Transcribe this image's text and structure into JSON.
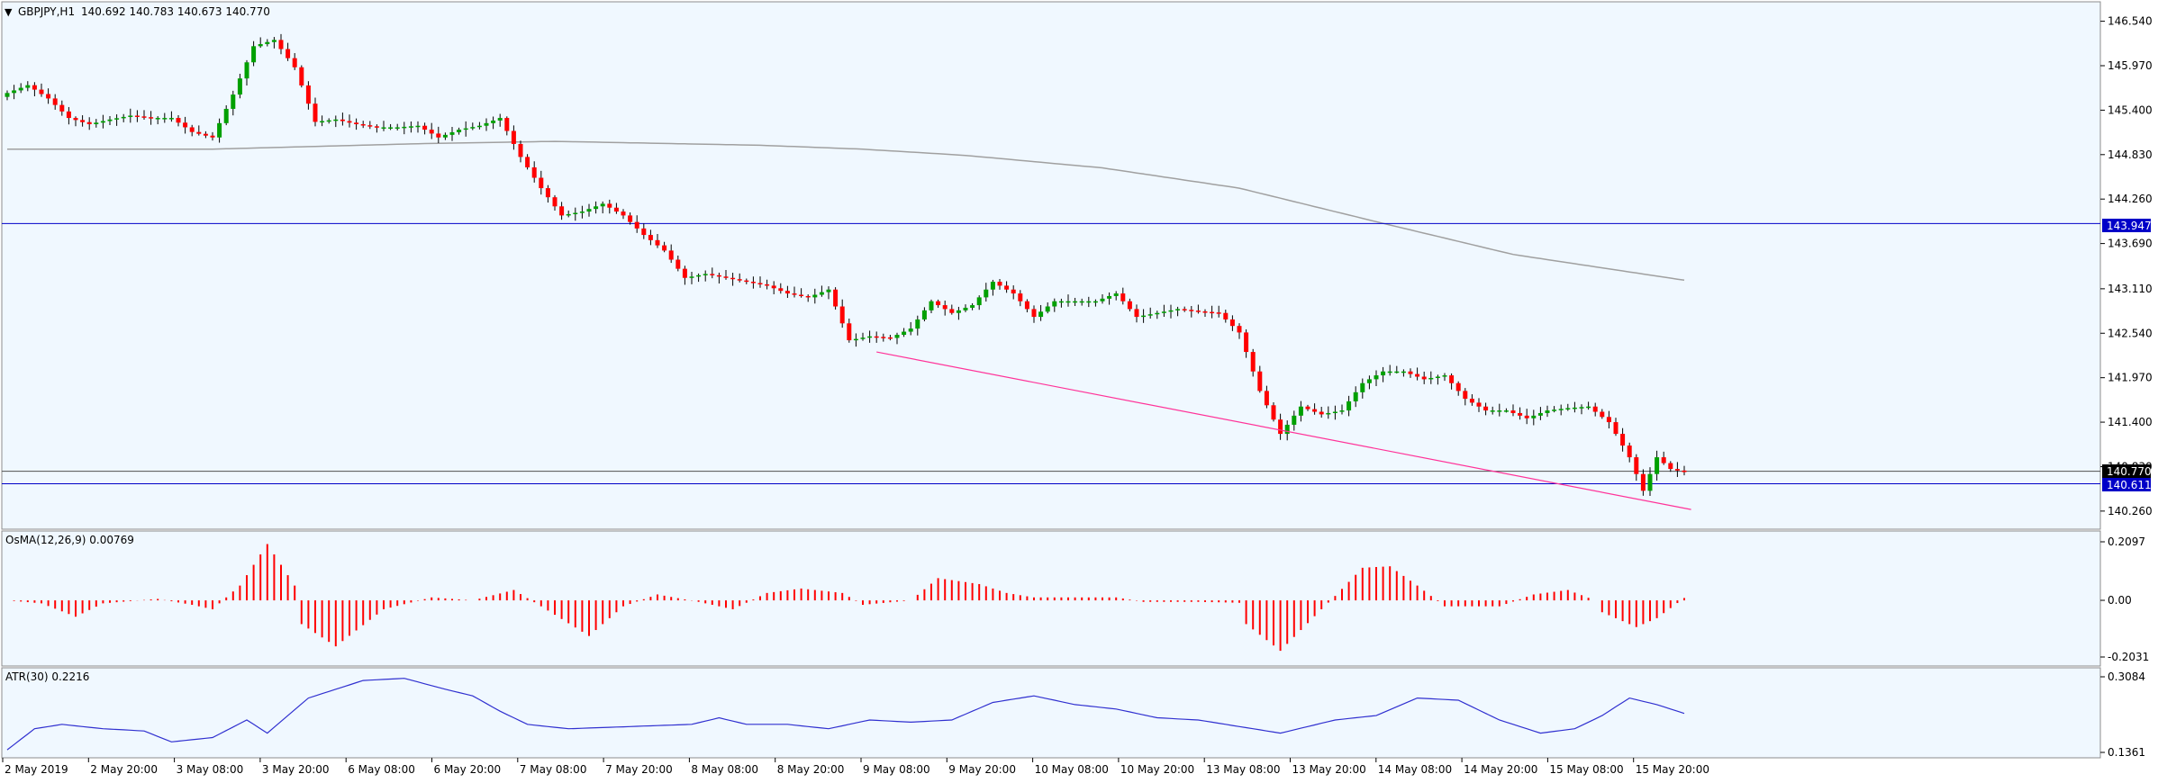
{
  "header": {
    "menu_arrow": "▼",
    "symbol_label": "GBPJPY,H1",
    "ohlc_text": "140.692 140.783 140.673 140.770"
  },
  "price_lines": {
    "current_label": "140.770",
    "blue_level_high_label": "143.947",
    "blue_level_low_label": "140.611"
  },
  "indicators": {
    "osma_label": "OsMA(12,26,9) 0.00769",
    "atr_label": "ATR(30) 0.2216"
  },
  "colors": {
    "background": "#f0f8ff",
    "panel_border": "#8c8c8c",
    "bull_candle": "#00a000",
    "bear_candle": "#ff0000",
    "wick": "#000000",
    "moving_average": "#a0a0a0",
    "trendline": "#ff3399",
    "level_line": "#0000c8",
    "current_price_line": "#505050",
    "osma_bars": "#ff0000",
    "atr_line": "#3030d0",
    "axis_text": "#000000",
    "label_bg_blue": "#0000c8",
    "label_bg_black": "#000000"
  },
  "chart_data": [
    {
      "type": "candlestick",
      "title": "GBPJPY,H1",
      "ylim": [
        140.12,
        146.72
      ],
      "yticks": [
        "146.540",
        "145.970",
        "145.400",
        "144.830",
        "144.260",
        "143.690",
        "143.110",
        "142.540",
        "141.970",
        "141.400",
        "140.830",
        "140.260"
      ],
      "x_labels": [
        "2 May 2019",
        "2 May 20:00",
        "3 May 08:00",
        "3 May 20:00",
        "6 May 08:00",
        "6 May 20:00",
        "7 May 08:00",
        "7 May 20:00",
        "8 May 08:00",
        "8 May 20:00",
        "9 May 08:00",
        "9 May 20:00",
        "10 May 08:00",
        "10 May 20:00",
        "13 May 08:00",
        "13 May 20:00",
        "14 May 08:00",
        "14 May 20:00",
        "15 May 08:00",
        "15 May 20:00"
      ],
      "anchors": [
        [
          0,
          145.62
        ],
        [
          3,
          145.72
        ],
        [
          6,
          145.55
        ],
        [
          9,
          145.3
        ],
        [
          12,
          145.22
        ],
        [
          15,
          145.28
        ],
        [
          18,
          145.33
        ],
        [
          21,
          145.3
        ],
        [
          24,
          145.3
        ],
        [
          27,
          145.12
        ],
        [
          30,
          145.05
        ],
        [
          33,
          145.6
        ],
        [
          36,
          146.22
        ],
        [
          39,
          146.3
        ],
        [
          42,
          145.95
        ],
        [
          45,
          145.25
        ],
        [
          48,
          145.28
        ],
        [
          51,
          145.22
        ],
        [
          54,
          145.18
        ],
        [
          57,
          145.18
        ],
        [
          60,
          145.2
        ],
        [
          63,
          145.05
        ],
        [
          66,
          145.15
        ],
        [
          69,
          145.2
        ],
        [
          72,
          145.3
        ],
        [
          75,
          144.8
        ],
        [
          78,
          144.4
        ],
        [
          81,
          144.05
        ],
        [
          84,
          144.1
        ],
        [
          87,
          144.2
        ],
        [
          90,
          144.05
        ],
        [
          93,
          143.8
        ],
        [
          96,
          143.6
        ],
        [
          99,
          143.25
        ],
        [
          102,
          143.3
        ],
        [
          105,
          143.25
        ],
        [
          108,
          143.2
        ],
        [
          111,
          143.15
        ],
        [
          114,
          143.05
        ],
        [
          117,
          143.0
        ],
        [
          120,
          143.1
        ],
        [
          123,
          142.45
        ],
        [
          126,
          142.5
        ],
        [
          129,
          142.48
        ],
        [
          132,
          142.6
        ],
        [
          135,
          142.95
        ],
        [
          138,
          142.8
        ],
        [
          141,
          142.9
        ],
        [
          144,
          143.2
        ],
        [
          147,
          143.05
        ],
        [
          150,
          142.75
        ],
        [
          153,
          142.95
        ],
        [
          156,
          142.95
        ],
        [
          159,
          142.95
        ],
        [
          162,
          143.05
        ],
        [
          165,
          142.75
        ],
        [
          168,
          142.8
        ],
        [
          171,
          142.85
        ],
        [
          174,
          142.82
        ],
        [
          177,
          142.8
        ],
        [
          180,
          142.55
        ],
        [
          183,
          141.8
        ],
        [
          186,
          141.25
        ],
        [
          189,
          141.6
        ],
        [
          192,
          141.5
        ],
        [
          195,
          141.55
        ],
        [
          198,
          141.9
        ],
        [
          201,
          142.05
        ],
        [
          204,
          142.05
        ],
        [
          207,
          141.95
        ],
        [
          210,
          142.0
        ],
        [
          213,
          141.7
        ],
        [
          216,
          141.55
        ],
        [
          219,
          141.55
        ],
        [
          222,
          141.45
        ],
        [
          225,
          141.55
        ],
        [
          228,
          141.58
        ],
        [
          231,
          141.6
        ],
        [
          234,
          141.4
        ],
        [
          237,
          140.95
        ],
        [
          239,
          140.52
        ],
        [
          241,
          140.95
        ],
        [
          243,
          140.8
        ],
        [
          245,
          140.76
        ]
      ],
      "moving_average": [
        [
          0,
          144.9
        ],
        [
          30,
          144.9
        ],
        [
          60,
          144.97
        ],
        [
          80,
          145.0
        ],
        [
          110,
          144.95
        ],
        [
          125,
          144.9
        ],
        [
          140,
          144.82
        ],
        [
          160,
          144.66
        ],
        [
          180,
          144.4
        ],
        [
          200,
          143.97
        ],
        [
          220,
          143.55
        ],
        [
          245,
          143.22
        ]
      ],
      "trendline": {
        "x1": 127,
        "y1": 142.3,
        "x2": 246,
        "y2": 140.28
      },
      "levels": [
        143.947,
        140.611
      ],
      "current_price": 140.77
    },
    {
      "type": "bar",
      "title": "OsMA(12,26,9) 0.00769",
      "ylim": [
        -0.2031,
        0.2097
      ],
      "yticks": [
        "0.2097",
        "0.00",
        "-0.2031"
      ],
      "anchors": [
        [
          0,
          0.0
        ],
        [
          5,
          -0.01
        ],
        [
          10,
          -0.055
        ],
        [
          14,
          -0.01
        ],
        [
          22,
          0.005
        ],
        [
          27,
          -0.015
        ],
        [
          30,
          -0.03
        ],
        [
          34,
          0.05
        ],
        [
          38,
          0.19
        ],
        [
          42,
          0.05
        ],
        [
          43,
          -0.08
        ],
        [
          48,
          -0.155
        ],
        [
          55,
          -0.03
        ],
        [
          62,
          0.01
        ],
        [
          68,
          0.0
        ],
        [
          74,
          0.035
        ],
        [
          78,
          -0.02
        ],
        [
          85,
          -0.12
        ],
        [
          90,
          -0.02
        ],
        [
          95,
          0.02
        ],
        [
          101,
          -0.005
        ],
        [
          106,
          -0.03
        ],
        [
          111,
          0.025
        ],
        [
          116,
          0.04
        ],
        [
          122,
          0.025
        ],
        [
          125,
          -0.015
        ],
        [
          132,
          0.0
        ],
        [
          136,
          0.075
        ],
        [
          142,
          0.055
        ],
        [
          146,
          0.025
        ],
        [
          150,
          0.01
        ],
        [
          156,
          0.01
        ],
        [
          162,
          0.01
        ],
        [
          166,
          -0.005
        ],
        [
          174,
          -0.005
        ],
        [
          180,
          -0.008
        ],
        [
          181,
          -0.08
        ],
        [
          186,
          -0.17
        ],
        [
          189,
          -0.1
        ],
        [
          192,
          -0.03
        ],
        [
          194,
          0.015
        ],
        [
          198,
          0.11
        ],
        [
          202,
          0.115
        ],
        [
          206,
          0.05
        ],
        [
          210,
          -0.02
        ],
        [
          218,
          -0.02
        ],
        [
          223,
          0.02
        ],
        [
          228,
          0.035
        ],
        [
          232,
          0.0
        ],
        [
          233,
          -0.04
        ],
        [
          238,
          -0.09
        ],
        [
          241,
          -0.06
        ],
        [
          245,
          0.008
        ]
      ]
    },
    {
      "type": "line",
      "title": "ATR(30) 0.2216",
      "ylim": [
        0.1361,
        0.3084
      ],
      "yticks": [
        "0.3084",
        "0.1361"
      ],
      "anchors": [
        [
          0,
          0.142
        ],
        [
          4,
          0.19
        ],
        [
          8,
          0.2
        ],
        [
          14,
          0.19
        ],
        [
          20,
          0.185
        ],
        [
          24,
          0.16
        ],
        [
          30,
          0.17
        ],
        [
          35,
          0.21
        ],
        [
          38,
          0.18
        ],
        [
          44,
          0.26
        ],
        [
          52,
          0.3
        ],
        [
          58,
          0.305
        ],
        [
          64,
          0.28
        ],
        [
          68,
          0.265
        ],
        [
          72,
          0.23
        ],
        [
          76,
          0.2
        ],
        [
          82,
          0.19
        ],
        [
          100,
          0.2
        ],
        [
          104,
          0.215
        ],
        [
          108,
          0.2
        ],
        [
          114,
          0.2
        ],
        [
          120,
          0.19
        ],
        [
          126,
          0.21
        ],
        [
          132,
          0.205
        ],
        [
          138,
          0.21
        ],
        [
          144,
          0.25
        ],
        [
          150,
          0.265
        ],
        [
          156,
          0.245
        ],
        [
          162,
          0.235
        ],
        [
          168,
          0.215
        ],
        [
          174,
          0.21
        ],
        [
          180,
          0.195
        ],
        [
          186,
          0.18
        ],
        [
          194,
          0.21
        ],
        [
          200,
          0.22
        ],
        [
          206,
          0.26
        ],
        [
          212,
          0.255
        ],
        [
          218,
          0.21
        ],
        [
          224,
          0.18
        ],
        [
          229,
          0.19
        ],
        [
          233,
          0.22
        ],
        [
          237,
          0.26
        ],
        [
          241,
          0.245
        ],
        [
          245,
          0.225
        ]
      ]
    }
  ]
}
